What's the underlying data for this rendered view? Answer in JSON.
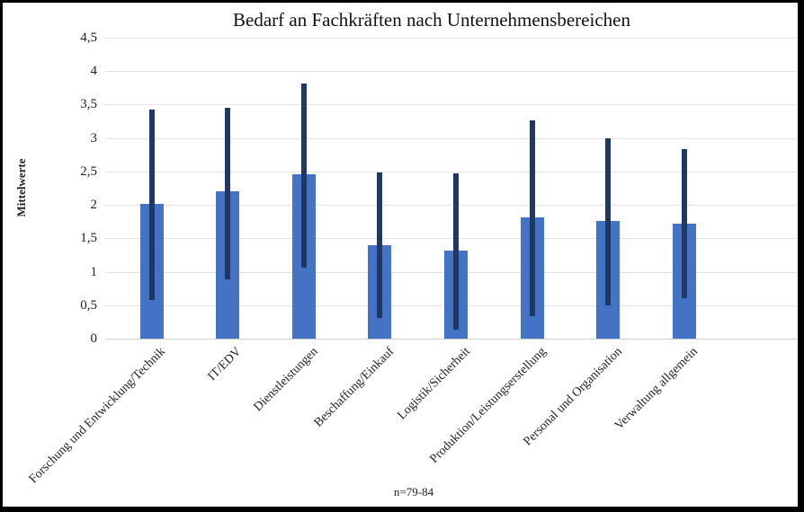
{
  "chart_data": {
    "type": "bar",
    "title": "Bedarf an Fachkräften nach Unternehmensbereichen",
    "ylabel": "Mittelwerte",
    "note": "n=79-84",
    "ylim": [
      0,
      4.5
    ],
    "ytick_step": 0.5,
    "decimal_separator": ",",
    "grid": "horizontal",
    "legend": null,
    "categories": [
      "Forschung und Entwicklung/Technik",
      "IT/EDV",
      "Dienstleistungen",
      "Beschaffung/Einkauf",
      "Logistik/Sicherheit",
      "Produktion/Leistungserstellung",
      "Personal und Organisation",
      "Verwaltung allgemein"
    ],
    "values": [
      2.02,
      2.2,
      2.46,
      1.4,
      1.32,
      1.81,
      1.76,
      1.72
    ],
    "error_bars": {
      "low": [
        0.58,
        0.89,
        1.06,
        0.31,
        0.13,
        0.33,
        0.5,
        0.61
      ],
      "high": [
        3.43,
        3.45,
        3.81,
        2.48,
        2.47,
        3.27,
        3.0,
        2.84
      ]
    },
    "colors": {
      "bar_fill": "#4472C4",
      "error_bar": "#1F3864",
      "gridline": "#E2E2E2",
      "axis_line": "#D0D0D0",
      "text": "#111111",
      "frame": "#000000",
      "background": "#FFFFFF"
    }
  }
}
